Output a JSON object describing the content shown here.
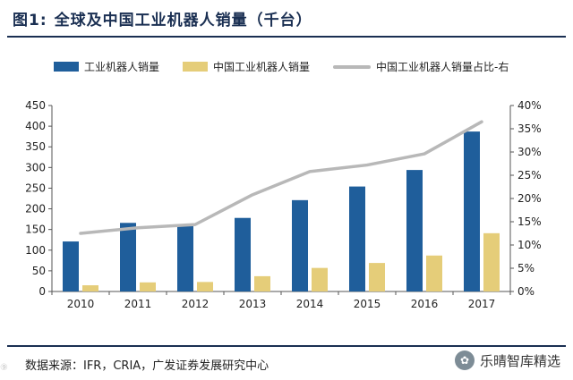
{
  "header": {
    "figure_num": "图1:",
    "title": "全球及中国工业机器人销量（千台）"
  },
  "legend": [
    {
      "label": "工业机器人销量",
      "color": "#1f5e9b"
    },
    {
      "label": "中国工业机器人销量",
      "color": "#e5cd79"
    },
    {
      "label": "中国工业机器人销量占比-右",
      "color": "#b8b8b8"
    }
  ],
  "chart_data": {
    "type": "bar",
    "categories": [
      "2010",
      "2011",
      "2012",
      "2013",
      "2014",
      "2015",
      "2016",
      "2017"
    ],
    "series": [
      {
        "name": "工业机器人销量",
        "kind": "bar",
        "axis": "left",
        "color": "#1f5e9b",
        "values": [
          121,
          166,
          159,
          178,
          221,
          254,
          294,
          387
        ]
      },
      {
        "name": "中国工业机器人销量",
        "kind": "bar",
        "axis": "left",
        "color": "#e5cd79",
        "values": [
          15,
          22,
          23,
          37,
          57,
          69,
          87,
          141
        ]
      },
      {
        "name": "中国工业机器人销量占比-右",
        "kind": "line",
        "axis": "right",
        "color": "#b8b8b8",
        "values": [
          12.5,
          13.7,
          14.4,
          20.8,
          25.8,
          27.2,
          29.6,
          36.5
        ]
      }
    ],
    "y_left": {
      "min": 0,
      "max": 450,
      "step": 50,
      "ticks": [
        "0",
        "50",
        "100",
        "150",
        "200",
        "250",
        "300",
        "350",
        "400",
        "450"
      ]
    },
    "y_right": {
      "min": 0,
      "max": 40,
      "step": 5,
      "ticks": [
        "0%",
        "5%",
        "10%",
        "15%",
        "20%",
        "25%",
        "30%",
        "35%",
        "40%"
      ]
    },
    "grid": false
  },
  "footer": {
    "source": "数据来源：IFR，CRIA，广发证券发展研究中心",
    "watermark": "乐晴智库精选",
    "corner_mark": "⑨"
  }
}
